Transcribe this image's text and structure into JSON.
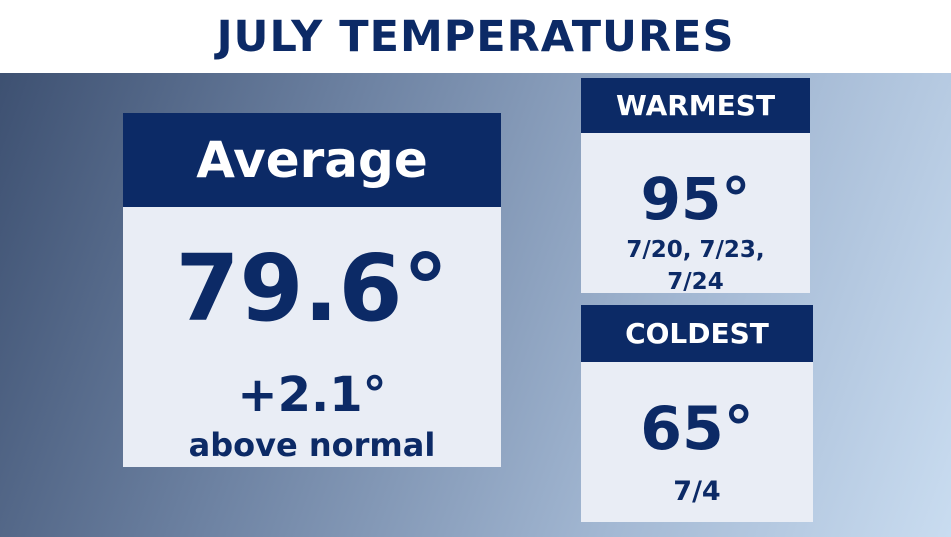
{
  "header": {
    "title": "JULY TEMPERATURES"
  },
  "average": {
    "label": "Average",
    "value": "79.6°",
    "departure": "+2.1°",
    "note": "above normal"
  },
  "warmest": {
    "label": "WARMEST",
    "value": "95°",
    "dates": "7/20, 7/23, 7/24"
  },
  "coldest": {
    "label": "COLDEST",
    "value": "65°",
    "dates": "7/4"
  }
}
